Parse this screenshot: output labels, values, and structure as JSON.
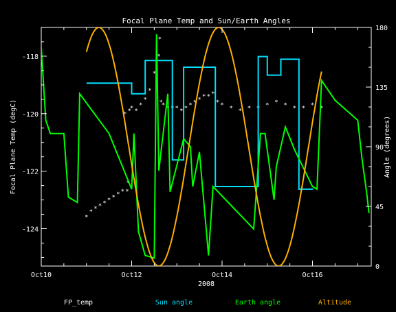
{
  "chart_data": {
    "type": "line",
    "title": "Focal Plane Temp and Sun/Earth Angles",
    "xlabel": "2008",
    "ylabel_left": "Focal Plane Temp (degC)",
    "ylabel_right": "Angle (degrees)",
    "x_ticks": [
      "Oct10",
      "Oct12",
      "Oct14",
      "Oct16"
    ],
    "x_tick_days": [
      10,
      12,
      14,
      16
    ],
    "xlim": [
      10,
      17.3
    ],
    "ylim_left": [
      -125.3,
      -117.0
    ],
    "ylim_right": [
      0,
      180
    ],
    "y_left_ticks": [
      "-118",
      "-120",
      "-122",
      "-124"
    ],
    "y_left_tick_values": [
      -118,
      -120,
      -122,
      -124
    ],
    "y_right_ticks": [
      "180",
      "135",
      "90",
      "45",
      "0"
    ],
    "y_right_tick_values": [
      180,
      135,
      90,
      45,
      0
    ],
    "series": [
      {
        "name": "FP_temp",
        "color": "#ffffff",
        "axis": "left",
        "style": "points",
        "points": [
          [
            11.0,
            -123.6
          ],
          [
            11.1,
            -123.4
          ],
          [
            11.2,
            -123.3
          ],
          [
            11.3,
            -123.2
          ],
          [
            11.4,
            -123.1
          ],
          [
            11.5,
            -123.0
          ],
          [
            11.6,
            -122.9
          ],
          [
            11.7,
            -122.8
          ],
          [
            11.8,
            -122.7
          ],
          [
            11.9,
            -122.7
          ],
          [
            11.92,
            -122.4
          ],
          [
            11.85,
            -120.0
          ],
          [
            11.95,
            -119.9
          ],
          [
            12.0,
            -119.8
          ],
          [
            12.1,
            -119.9
          ],
          [
            12.2,
            -119.7
          ],
          [
            12.3,
            -119.5
          ],
          [
            12.4,
            -119.2
          ],
          [
            12.5,
            -118.6
          ],
          [
            12.6,
            -118.0
          ],
          [
            12.62,
            -117.4
          ],
          [
            12.65,
            -119.6
          ],
          [
            12.7,
            -119.7
          ],
          [
            12.8,
            -119.8
          ],
          [
            12.9,
            -119.8
          ],
          [
            13.0,
            -119.8
          ],
          [
            13.1,
            -119.9
          ],
          [
            13.2,
            -119.8
          ],
          [
            13.3,
            -119.7
          ],
          [
            13.4,
            -119.6
          ],
          [
            13.5,
            -119.5
          ],
          [
            13.6,
            -119.4
          ],
          [
            13.7,
            -119.4
          ],
          [
            13.8,
            -119.3
          ],
          [
            13.9,
            -119.6
          ],
          [
            14.0,
            -119.7
          ],
          [
            14.2,
            -119.8
          ],
          [
            14.4,
            -119.9
          ],
          [
            14.6,
            -119.8
          ],
          [
            14.8,
            -119.8
          ],
          [
            15.0,
            -119.7
          ],
          [
            15.2,
            -119.6
          ],
          [
            15.4,
            -119.7
          ],
          [
            15.6,
            -119.8
          ],
          [
            15.8,
            -119.8
          ],
          [
            16.0,
            -119.7
          ],
          [
            16.2,
            -119.8
          ]
        ]
      },
      {
        "name": "Sun angle",
        "color": "#00e0ff",
        "axis": "right",
        "style": "step",
        "points": [
          [
            11.0,
            138
          ],
          [
            12.0,
            138
          ],
          [
            12.0,
            130
          ],
          [
            12.3,
            130
          ],
          [
            12.3,
            155
          ],
          [
            12.9,
            155
          ],
          [
            12.9,
            80
          ],
          [
            13.15,
            80
          ],
          [
            13.15,
            150
          ],
          [
            13.85,
            150
          ],
          [
            13.85,
            60
          ],
          [
            14.8,
            60
          ],
          [
            14.8,
            158
          ],
          [
            15.0,
            158
          ],
          [
            15.0,
            144
          ],
          [
            15.3,
            144
          ],
          [
            15.3,
            156
          ],
          [
            15.7,
            156
          ],
          [
            15.7,
            58
          ],
          [
            16.0,
            58
          ],
          [
            16.0,
            58.5
          ]
        ]
      },
      {
        "name": "Earth angle",
        "color": "#00ff00",
        "axis": "right",
        "style": "line",
        "points": [
          [
            10.0,
            165
          ],
          [
            10.1,
            110
          ],
          [
            10.2,
            100
          ],
          [
            10.5,
            100
          ],
          [
            10.6,
            52
          ],
          [
            10.8,
            48
          ],
          [
            10.85,
            130
          ],
          [
            11.5,
            100
          ],
          [
            12.0,
            58
          ],
          [
            12.05,
            100
          ],
          [
            12.15,
            26
          ],
          [
            12.3,
            8
          ],
          [
            12.5,
            6
          ],
          [
            12.55,
            175
          ],
          [
            12.6,
            72
          ],
          [
            12.8,
            130
          ],
          [
            12.85,
            56
          ],
          [
            13.15,
            96
          ],
          [
            13.3,
            90
          ],
          [
            13.35,
            60
          ],
          [
            13.5,
            86
          ],
          [
            13.7,
            8
          ],
          [
            13.8,
            60
          ],
          [
            14.7,
            28
          ],
          [
            14.85,
            100
          ],
          [
            14.95,
            100
          ],
          [
            15.15,
            50
          ],
          [
            15.2,
            75
          ],
          [
            15.4,
            105
          ],
          [
            15.6,
            88
          ],
          [
            16.0,
            60
          ],
          [
            16.1,
            58
          ],
          [
            16.2,
            140
          ],
          [
            16.5,
            125
          ],
          [
            17.0,
            110
          ],
          [
            17.1,
            80
          ],
          [
            17.2,
            55
          ],
          [
            17.25,
            40
          ]
        ]
      },
      {
        "name": "Altitude",
        "color": "#ffb000",
        "axis": "right",
        "style": "line",
        "period_days": 2.65,
        "min_at_day": 12.6,
        "max_value": 180,
        "x_range": [
          11.0,
          16.2
        ]
      }
    ],
    "legend_position": "bottom"
  }
}
